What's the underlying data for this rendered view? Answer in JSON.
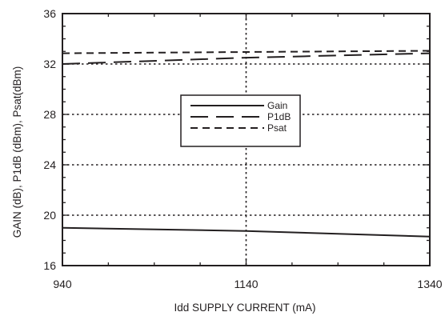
{
  "chart_data": {
    "type": "line",
    "xlabel": "Idd SUPPLY CURRENT (mA)",
    "ylabel": "GAIN (dB), P1dB (dBm), Psat(dBm)",
    "xlim": [
      940,
      1340
    ],
    "ylim": [
      16,
      36
    ],
    "xticks": [
      940,
      1140,
      1340
    ],
    "yticks": [
      16,
      20,
      24,
      28,
      32,
      36
    ],
    "grid": true,
    "legend_position": "center",
    "series": [
      {
        "name": "Gain",
        "style": "solid",
        "x": [
          940,
          1140,
          1340
        ],
        "y": [
          19.0,
          18.75,
          18.3
        ]
      },
      {
        "name": "P1dB",
        "style": "long-dash",
        "x": [
          940,
          1140,
          1340
        ],
        "y": [
          32.0,
          32.5,
          32.85
        ]
      },
      {
        "name": "Psat",
        "style": "short-dash",
        "x": [
          940,
          1140,
          1340
        ],
        "y": [
          32.85,
          32.95,
          33.05
        ]
      }
    ],
    "colors": {
      "line": "#231f20",
      "grid": "#231f20"
    }
  }
}
